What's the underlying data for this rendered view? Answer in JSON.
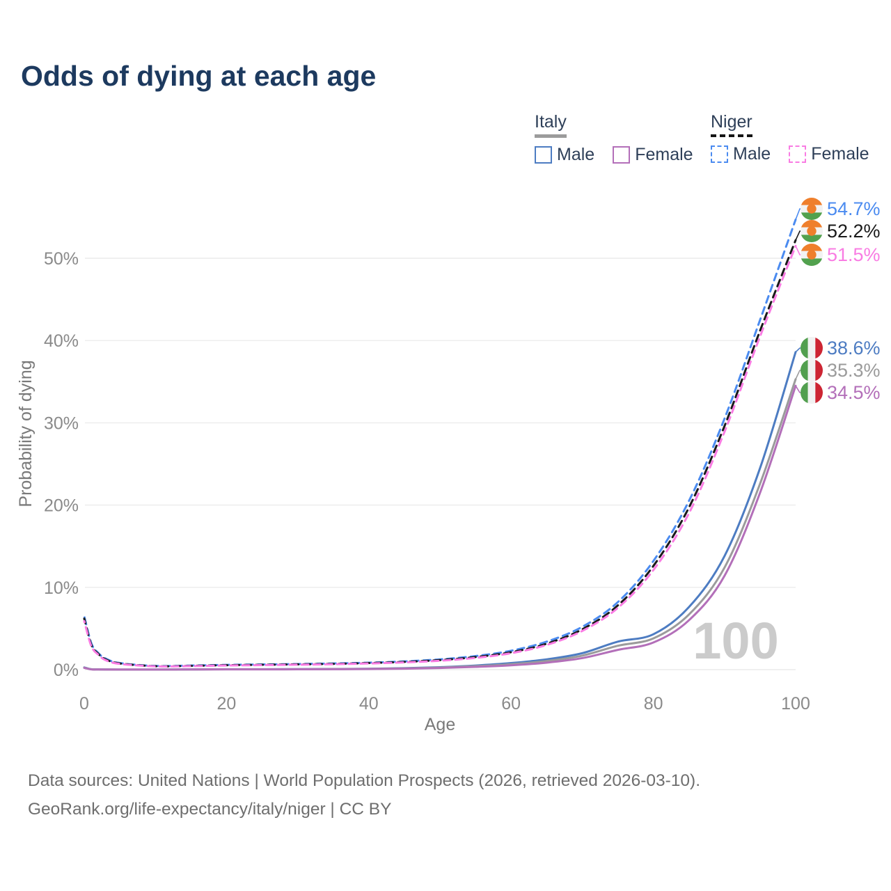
{
  "title": "Odds of dying at each age",
  "legend": {
    "groups": [
      {
        "country": "Italy",
        "line_style": "solid",
        "items": [
          {
            "label": "Male",
            "color": "#4d7cc2"
          },
          {
            "label": "Female",
            "color": "#b36fb9"
          }
        ]
      },
      {
        "country": "Niger",
        "line_style": "dashed",
        "items": [
          {
            "label": "Male",
            "color": "#4b8bf0"
          },
          {
            "label": "Female",
            "color": "#f97ce3"
          }
        ]
      }
    ]
  },
  "chart_data": {
    "type": "line",
    "title": "Odds of dying at each age",
    "xlabel": "Age",
    "ylabel": "Probability of dying",
    "xlim": [
      0,
      100
    ],
    "ylim": [
      0,
      55
    ],
    "grid": "horizontal",
    "x_ticks": [
      "0",
      "20",
      "40",
      "60",
      "80",
      "100"
    ],
    "y_ticks": [
      "0%",
      "10%",
      "20%",
      "30%",
      "40%",
      "50%"
    ],
    "age_watermark": "100",
    "ages": [
      0,
      1,
      2,
      3,
      5,
      10,
      15,
      20,
      25,
      30,
      35,
      40,
      45,
      50,
      55,
      60,
      65,
      70,
      75,
      80,
      85,
      90,
      95,
      100
    ],
    "series": [
      {
        "name": "Italy Male",
        "country": "Italy",
        "sex": "male",
        "line": "solid",
        "color": "#4d7cc2",
        "flag": "italy",
        "end_label": "38.6%",
        "values": [
          0.27,
          0.05,
          0.03,
          0.02,
          0.01,
          0.01,
          0.03,
          0.05,
          0.05,
          0.06,
          0.08,
          0.11,
          0.18,
          0.3,
          0.5,
          0.8,
          1.25,
          2.0,
          3.4,
          4.3,
          7.6,
          13.8,
          24.5,
          38.6
        ]
      },
      {
        "name": "Italy Both sexes",
        "country": "Italy",
        "sex": "both",
        "line": "solid",
        "color": "#9b9b9b",
        "flag": "italy",
        "end_label": "35.3%",
        "values": [
          0.24,
          0.04,
          0.02,
          0.02,
          0.01,
          0.01,
          0.02,
          0.04,
          0.04,
          0.05,
          0.07,
          0.09,
          0.15,
          0.25,
          0.42,
          0.66,
          1.05,
          1.7,
          2.9,
          3.8,
          6.7,
          12.4,
          22.6,
          35.3
        ]
      },
      {
        "name": "Italy Female",
        "country": "Italy",
        "sex": "female",
        "line": "solid",
        "color": "#b36fb9",
        "flag": "italy",
        "end_label": "34.5%",
        "values": [
          0.21,
          0.03,
          0.02,
          0.01,
          0.01,
          0.01,
          0.02,
          0.03,
          0.03,
          0.04,
          0.05,
          0.07,
          0.12,
          0.2,
          0.34,
          0.53,
          0.85,
          1.4,
          2.4,
          3.3,
          6.0,
          11.4,
          21.5,
          34.5
        ]
      },
      {
        "name": "Niger Male",
        "country": "Niger",
        "sex": "male",
        "line": "dashed",
        "color": "#4b8bf0",
        "flag": "niger",
        "end_label": "54.7%",
        "values": [
          6.5,
          3.2,
          2.0,
          1.35,
          0.8,
          0.45,
          0.5,
          0.58,
          0.63,
          0.68,
          0.75,
          0.85,
          1.0,
          1.25,
          1.65,
          2.3,
          3.4,
          5.2,
          8.2,
          13.2,
          20.5,
          30.5,
          42.5,
          54.7
        ]
      },
      {
        "name": "Niger Both sexes",
        "country": "Niger",
        "sex": "both",
        "line": "dashed",
        "color": "#1a1a1a",
        "flag": "niger",
        "end_label": "52.2%",
        "values": [
          6.2,
          3.0,
          1.9,
          1.25,
          0.75,
          0.42,
          0.46,
          0.54,
          0.59,
          0.64,
          0.7,
          0.8,
          0.94,
          1.16,
          1.53,
          2.12,
          3.15,
          4.9,
          7.8,
          12.6,
          19.7,
          29.6,
          41.2,
          52.2
        ]
      },
      {
        "name": "Niger Female",
        "country": "Niger",
        "sex": "female",
        "line": "dashed",
        "color": "#f97ce3",
        "flag": "niger",
        "end_label": "51.5%",
        "values": [
          5.9,
          2.85,
          1.8,
          1.15,
          0.7,
          0.4,
          0.43,
          0.5,
          0.55,
          0.6,
          0.66,
          0.75,
          0.88,
          1.08,
          1.43,
          2.0,
          3.0,
          4.7,
          7.5,
          12.1,
          19.0,
          28.9,
          40.5,
          51.5
        ]
      }
    ]
  },
  "colors": {
    "title": "#1d3a5f",
    "axis_text": "#8a8a8a",
    "gridline": "#ececec",
    "watermark": "#cbcbcb",
    "italy_underline": "#9b9b9b",
    "niger_underline": "#151515",
    "flag_niger_orange": "#ef7f2c",
    "flag_niger_green": "#52a14e",
    "flag_italy_green": "#529f4f",
    "flag_italy_red": "#cd2533",
    "flag_white": "#f2f2f2"
  },
  "footer": {
    "line1": "Data sources: United Nations | World Population Prospects (2026, retrieved 2026-03-10).",
    "line2": "GeoRank.org/life-expectancy/italy/niger | CC BY"
  }
}
